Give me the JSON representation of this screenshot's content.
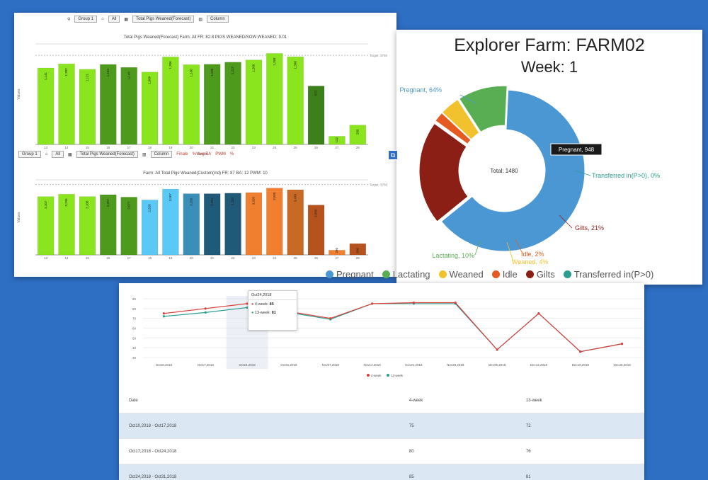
{
  "bar_panel": {
    "toolbar1": {
      "group": "Group 1",
      "all": "All",
      "measure": "Total Pigs Weaned(Forecast)",
      "column": "Column"
    },
    "toolbar2": {
      "group": "Group 1",
      "all": "All",
      "measure": "Total Pigs Weaned(Forecast)",
      "column": "Column",
      "fr": "Finale",
      "ba": "% Avg BA",
      "pwm": "PWM",
      "pct": "%"
    },
    "chart1_title": "Total Pigs Weaned(Forecast) Farm: All FR: 82.8 PIGS WEANED/SOW WEANED: 9.01",
    "chart2_title": "Farm: All Total Pigs Weaned(Custom(ind) FR: 87 BA: 12 PWM: 10",
    "target_label": "Target: 3750"
  },
  "chart_data": [
    {
      "type": "bar",
      "title": "Total Pigs Weaned(Forecast) Farm: All FR: 82.8 PIGS WEANED/SOW WEANED: 9.01",
      "xlabel": "Weeks",
      "ylabel": "Values",
      "categories": [
        "13",
        "14",
        "15",
        "16",
        "17",
        "18",
        "19",
        "20",
        "21",
        "22",
        "23",
        "24",
        "25",
        "26",
        "27",
        "28"
      ],
      "values": [
        1141,
        1202,
        1121,
        1193,
        1149,
        1080,
        1306,
        1190,
        1196,
        1227,
        1260,
        1358,
        1308,
        872,
        122,
        289
      ],
      "labels": [
        "1,141",
        "1,202",
        "1,121",
        "1,193",
        "1,149",
        "1,080",
        "1,306",
        "1,190",
        "1,196",
        "1,227",
        "1,260",
        "1,358",
        "1,308",
        "872",
        "122",
        "289"
      ],
      "colors": [
        "#8be51e",
        "#8be51e",
        "#8be51e",
        "#4e9a1c",
        "#4e9a1c",
        "#8be51e",
        "#8be51e",
        "#8be51e",
        "#4e9a1c",
        "#4e9a1c",
        "#8be51e",
        "#8be51e",
        "#8be51e",
        "#3d7f1a",
        "#8be51e",
        "#8be51e"
      ],
      "ylim": [
        0,
        1500
      ],
      "target": 1330
    },
    {
      "type": "bar",
      "title": "Farm: All Total Pigs Weaned(Custom(ind) FR: 87 BA: 12 PWM: 10",
      "xlabel": "",
      "ylabel": "Values",
      "categories": [
        "13",
        "14",
        "15",
        "16",
        "17",
        "18",
        "19",
        "20",
        "21",
        "22",
        "23",
        "24",
        "25",
        "26",
        "27",
        "28"
      ],
      "values": [
        3107,
        3234,
        3108,
        3207,
        3077,
        2928,
        3507,
        3260,
        3261,
        3289,
        3320,
        3560,
        3470,
        2656,
        250,
        600
      ],
      "labels": [
        "3,107",
        "3,234",
        "3,108",
        "3,207",
        "3,077",
        "2,928",
        "3,507",
        "3,260",
        "3,261",
        "3,289",
        "3,320",
        "3,560",
        "3,470",
        "2,656",
        "250",
        "600"
      ],
      "colors": [
        "#8be51e",
        "#8be51e",
        "#8be51e",
        "#4e9a1c",
        "#4e9a1c",
        "#5bc9f5",
        "#5bc9f5",
        "#3a8fb8",
        "#1f5a78",
        "#1f5a78",
        "#f08030",
        "#f08030",
        "#c86a25",
        "#b5521e",
        "#f08030",
        "#b5521e"
      ],
      "ylim": [
        0,
        4000
      ],
      "target": 3750
    },
    {
      "type": "pie",
      "title": "Explorer Farm: FARM02",
      "subtitle": "Week: 1",
      "center_label": "Total: 1480",
      "categories": [
        "Pregnant",
        "Lactating",
        "Weaned",
        "Idle",
        "Gilts",
        "Transferred in(P>0)"
      ],
      "values": [
        64,
        10,
        4,
        2,
        21,
        0
      ],
      "slice_labels": [
        "Pregnant, 64%",
        "Lactating, 10%",
        "Weaned, 4%",
        "Idle, 2%",
        "Gilts, 21%",
        "Transferred in(P>0), 0%"
      ],
      "colors": [
        "#4a97d4",
        "#59ae54",
        "#f2c12e",
        "#e55a20",
        "#8b1f16",
        "#2a9d8f"
      ],
      "tooltip": "Pregnant, 948"
    },
    {
      "type": "line",
      "x": [
        "Oct10,2018",
        "Oct17,2018",
        "Oct24,2018",
        "Oct31,2018",
        "Nov07,2018",
        "Nov14,2018",
        "Nov21,2018",
        "Nov28,2018",
        "Dec05,2018",
        "Dec12,2018",
        "Dec19,2018",
        "Dec26,2018"
      ],
      "series": [
        {
          "name": "4-week",
          "values": [
            75,
            80,
            85,
            77,
            70,
            85,
            86,
            86,
            38,
            75,
            36,
            44
          ],
          "color": "#d9413b"
        },
        {
          "name": "13-week",
          "values": [
            72,
            76,
            81,
            76,
            69,
            85,
            85,
            85,
            38,
            75,
            36,
            44
          ],
          "color": "#2a9d8f"
        }
      ],
      "yticks": [
        30,
        40,
        50,
        60,
        70,
        80,
        90
      ],
      "ylim": [
        30,
        90
      ],
      "legend": "bottom",
      "tooltip": {
        "title": "Oct24,2018",
        "rows": [
          {
            "name": "4-week",
            "value": "85"
          },
          {
            "name": "13-week",
            "value": "81"
          }
        ]
      }
    }
  ],
  "table": {
    "headers": [
      "Date",
      "4-week",
      "13-week"
    ],
    "rows": [
      [
        "Oct10,2018 - Oct17,2018",
        "75",
        "72"
      ],
      [
        "Oct17,2018 - Oct24,2018",
        "80",
        "76"
      ],
      [
        "Oct24,2018 - Oct31,2018",
        "85",
        "81"
      ]
    ]
  }
}
